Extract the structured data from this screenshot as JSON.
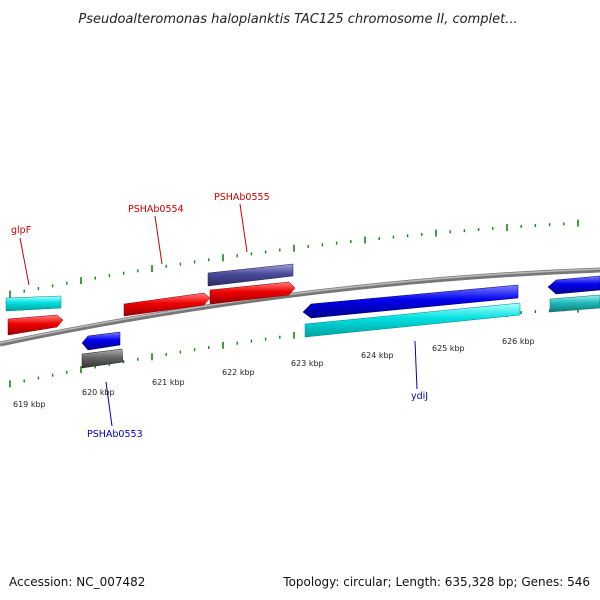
{
  "title": "Pseudoalteromonas haloplanktis TAC125 chromosome II, complet...",
  "footer": {
    "accession": "Accession: NC_007482",
    "summary": "Topology: circular; Length: 635,328 bp; Genes: 546"
  },
  "ticks": [
    "619 kbp",
    "620 kbp",
    "621 kbp",
    "622 kbp",
    "623 kbp",
    "624 kbp",
    "625 kbp",
    "626 kbp"
  ],
  "gene_labels": {
    "glpF": "glpF",
    "PSHAb0554": "PSHAb0554",
    "PSHAb0555": "PSHAb0555",
    "PSHAb0553": "PSHAb0553",
    "ydiJ": "ydiJ"
  },
  "colors": {
    "forward_label": "#cc0000",
    "reverse_label": "#0000bb",
    "backbone": "#808080",
    "tick_major": "#118811",
    "tick_minor": "#118811",
    "red": "#ee0000",
    "cyan": "#00dddd",
    "teal": "#22bbbb",
    "blue": "#0000ee",
    "slate": "#4a4a99",
    "gray": "#666666"
  }
}
